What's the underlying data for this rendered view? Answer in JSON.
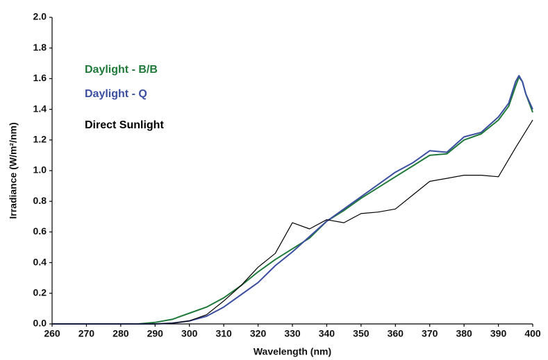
{
  "chart_data": {
    "type": "line",
    "xlabel": "Wavelength (nm)",
    "ylabel": "Irradiance (W/m²/nm)",
    "xlim": [
      260,
      400
    ],
    "ylim": [
      0,
      2
    ],
    "xticks": [
      260,
      270,
      280,
      290,
      300,
      310,
      320,
      330,
      340,
      350,
      360,
      370,
      380,
      390,
      400
    ],
    "yticks": [
      {
        "value": 0,
        "label": "0.0"
      },
      {
        "value": 0.2,
        "label": "0.2"
      },
      {
        "value": 0.4,
        "label": "0.4"
      },
      {
        "value": 0.6,
        "label": "0.6"
      },
      {
        "value": 0.8,
        "label": "0.8"
      },
      {
        "value": 1,
        "label": "1.0"
      },
      {
        "value": 1.2,
        "label": "1.2"
      },
      {
        "value": 1.4,
        "label": "1.4"
      },
      {
        "value": 1.6,
        "label": "1.6"
      },
      {
        "value": 1.8,
        "label": "1.8"
      },
      {
        "value": 2,
        "label": "2.0"
      }
    ],
    "grid": false,
    "legend": "upper left",
    "series": [
      {
        "name": "Daylight - B/B",
        "color": "#1f7a3a",
        "x": [
          260,
          270,
          280,
          285,
          290,
          295,
          300,
          305,
          310,
          315,
          320,
          325,
          330,
          335,
          340,
          345,
          350,
          355,
          360,
          365,
          370,
          375,
          380,
          385,
          390,
          393,
          395,
          396,
          397,
          398,
          400
        ],
        "values": [
          0,
          0,
          0,
          0,
          0.01,
          0.03,
          0.07,
          0.11,
          0.17,
          0.25,
          0.34,
          0.42,
          0.49,
          0.56,
          0.67,
          0.74,
          0.82,
          0.89,
          0.96,
          1.03,
          1.1,
          1.11,
          1.2,
          1.24,
          1.33,
          1.42,
          1.55,
          1.61,
          1.58,
          1.5,
          1.38
        ]
      },
      {
        "name": "Daylight - Q",
        "color": "#3b4ea0",
        "x": [
          260,
          270,
          280,
          285,
          290,
          295,
          300,
          305,
          310,
          315,
          320,
          325,
          330,
          335,
          340,
          345,
          350,
          355,
          360,
          365,
          370,
          375,
          380,
          385,
          390,
          393,
          395,
          396,
          397,
          398,
          400
        ],
        "values": [
          0,
          0,
          0,
          0,
          0,
          0.005,
          0.02,
          0.05,
          0.11,
          0.19,
          0.27,
          0.38,
          0.47,
          0.57,
          0.67,
          0.75,
          0.83,
          0.91,
          0.99,
          1.05,
          1.13,
          1.12,
          1.22,
          1.25,
          1.35,
          1.44,
          1.58,
          1.62,
          1.58,
          1.5,
          1.4
        ]
      },
      {
        "name": "Direct Sunlight",
        "color": "#000000",
        "x": [
          260,
          270,
          280,
          290,
          295,
          300,
          305,
          310,
          315,
          320,
          325,
          330,
          335,
          340,
          345,
          350,
          355,
          360,
          365,
          370,
          375,
          380,
          385,
          390,
          395,
          400
        ],
        "values": [
          0,
          0,
          0,
          0,
          0.005,
          0.02,
          0.06,
          0.15,
          0.25,
          0.37,
          0.46,
          0.66,
          0.62,
          0.68,
          0.66,
          0.72,
          0.73,
          0.75,
          0.84,
          0.93,
          0.95,
          0.97,
          0.97,
          0.96,
          1.15,
          1.33
        ]
      }
    ]
  }
}
